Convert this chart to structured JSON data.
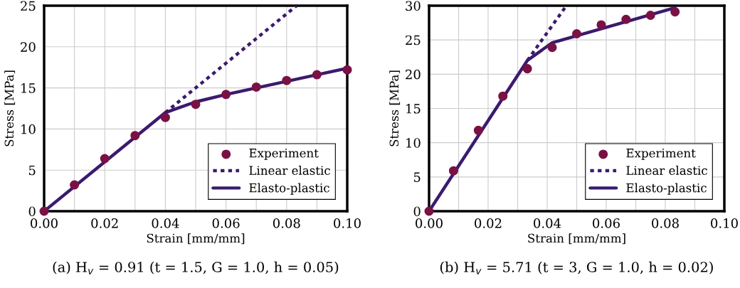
{
  "chart_data": [
    {
      "type": "line",
      "title": "(a) H$_{v}$ = 0.91 (t = 1.5, G = 1.0, h = 0.05)",
      "xlabel": "Strain [mm/mm]",
      "ylabel": "Stress [MPa]",
      "xlim": [
        0,
        0.1
      ],
      "ylim": [
        0,
        25
      ],
      "xticks": [
        {
          "value": 0,
          "label": "0.00"
        },
        {
          "value": 0.01,
          "label": null
        },
        {
          "value": 0.02,
          "label": "0.02"
        },
        {
          "value": 0.03,
          "label": null
        },
        {
          "value": 0.04,
          "label": "0.04"
        },
        {
          "value": 0.05,
          "label": null
        },
        {
          "value": 0.06,
          "label": "0.06"
        },
        {
          "value": 0.07,
          "label": null
        },
        {
          "value": 0.08,
          "label": "0.08"
        },
        {
          "value": 0.09,
          "label": null
        },
        {
          "value": 0.1,
          "label": "0.10"
        }
      ],
      "yticks": [
        0,
        5,
        10,
        15,
        20,
        25
      ],
      "grid": true,
      "legend": "bottom right",
      "series": [
        {
          "name": "Experiment",
          "type": "scatter",
          "marker": "circle",
          "color": "#7a1145",
          "x": [
            0,
            0.01,
            0.02,
            0.03,
            0.04,
            0.05,
            0.06,
            0.07,
            0.08,
            0.09,
            0.1
          ],
          "values": [
            0,
            3.2,
            6.4,
            9.2,
            11.4,
            13.0,
            14.2,
            15.1,
            15.9,
            16.6,
            17.2
          ]
        },
        {
          "name": "Linear elastic",
          "type": "line",
          "line_style": "dotted",
          "color": "#3b1a6e",
          "x": [
            0.04,
            0.0833
          ],
          "values": [
            12,
            25
          ]
        },
        {
          "name": "Elasto-plastic",
          "type": "line",
          "line_style": "solid",
          "color": "#3b1a6e",
          "x": [
            0,
            0.04,
            0.05,
            0.06,
            0.07,
            0.08,
            0.09,
            0.1
          ],
          "values": [
            0,
            12,
            13.3,
            14.2,
            15.0,
            15.8,
            16.6,
            17.4
          ]
        }
      ]
    },
    {
      "type": "line",
      "title": "(b) H$_{v}$ = 5.71 (t = 3, G = 1.0, h = 0.02)",
      "xlabel": "Strain [mm/mm]",
      "ylabel": "Stress [MPa]",
      "xlim": [
        0,
        0.1
      ],
      "ylim": [
        0,
        30
      ],
      "xticks": [
        {
          "value": 0,
          "label": "0.00"
        },
        {
          "value": 0.01,
          "label": null
        },
        {
          "value": 0.02,
          "label": "0.02"
        },
        {
          "value": 0.03,
          "label": null
        },
        {
          "value": 0.04,
          "label": "0.04"
        },
        {
          "value": 0.05,
          "label": null
        },
        {
          "value": 0.06,
          "label": "0.06"
        },
        {
          "value": 0.07,
          "label": null
        },
        {
          "value": 0.08,
          "label": "0.08"
        },
        {
          "value": 0.09,
          "label": null
        },
        {
          "value": 0.1,
          "label": "0.10"
        }
      ],
      "yticks": [
        0,
        5,
        10,
        15,
        20,
        25,
        30
      ],
      "grid": true,
      "legend": "bottom right",
      "series": [
        {
          "name": "Experiment",
          "type": "scatter",
          "marker": "circle",
          "color": "#7a1145",
          "x": [
            0,
            0.0083,
            0.0167,
            0.025,
            0.0333,
            0.0417,
            0.05,
            0.0583,
            0.0667,
            0.075,
            0.0833
          ],
          "values": [
            0,
            5.9,
            11.8,
            16.8,
            20.8,
            23.9,
            25.9,
            27.2,
            28.0,
            28.6,
            29.1
          ]
        },
        {
          "name": "Linear elastic",
          "type": "line",
          "line_style": "dotted",
          "color": "#3b1a6e",
          "x": [
            0.0333,
            0.0465
          ],
          "values": [
            22,
            30
          ]
        },
        {
          "name": "Elasto-plastic",
          "type": "line",
          "line_style": "solid",
          "color": "#3b1a6e",
          "x": [
            0,
            0.0333,
            0.0417,
            0.0833
          ],
          "values": [
            0,
            22,
            24.6,
            29.7
          ]
        }
      ]
    }
  ]
}
